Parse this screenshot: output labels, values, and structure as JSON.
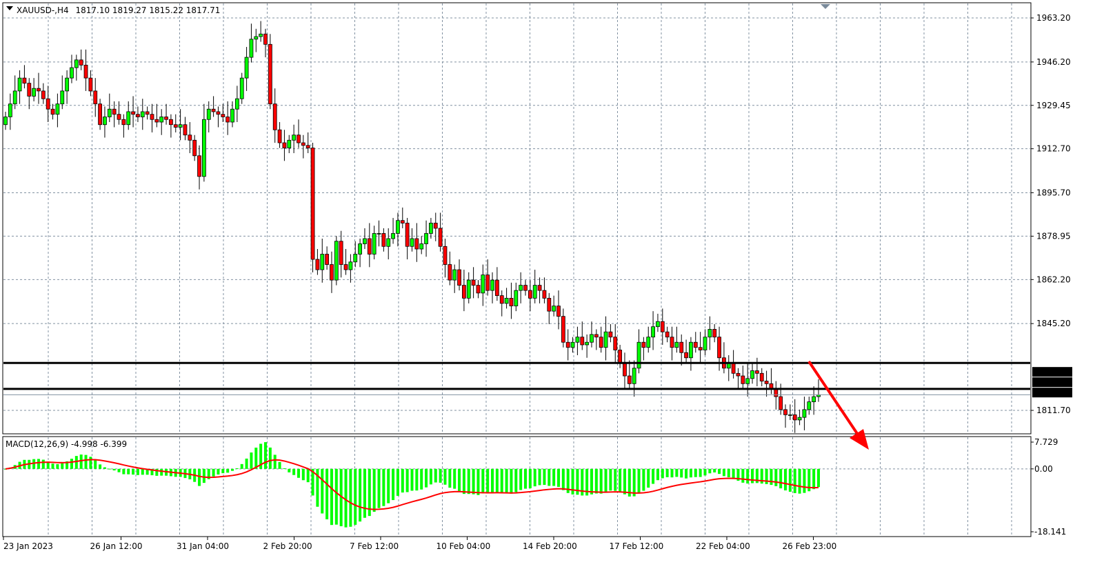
{
  "header": {
    "symbol": "XAUUSD-,H4",
    "ohlc": "1817.10 1819.27 1815.22 1817.71"
  },
  "price_axis": {
    "max": 1963.2,
    "min": 1811.7,
    "labels": [
      "1963.20",
      "1946.20",
      "1929.45",
      "1912.70",
      "1895.70",
      "1878.95",
      "1862.20",
      "1845.20",
      "1811.70"
    ]
  },
  "levels": [
    {
      "price": 1830.0,
      "label": "1830.00"
    },
    {
      "price": 1820.0,
      "label": "1820.00"
    }
  ],
  "current_price": {
    "price": 1817.71,
    "label": "1817.71"
  },
  "macd": {
    "label": "MACD(12,26,9) -4.998 -6.399",
    "max": 7.729,
    "min": -18.141,
    "labels": [
      "7.729",
      "0.00",
      "-18.141"
    ]
  },
  "time_axis": [
    "23 Jan 2023",
    "26 Jan 12:00",
    "31 Jan 04:00",
    "2 Feb 20:00",
    "7 Feb 12:00",
    "10 Feb 04:00",
    "14 Feb 20:00",
    "17 Feb 12:00",
    "22 Feb 04:00",
    "26 Feb 23:00"
  ],
  "colors": {
    "bull": "#00ff00",
    "bear": "#ff0000",
    "macd_hist": "#00ff00",
    "signal": "#ff0000",
    "arrow": "#ff0000"
  },
  "closes": [
    1925,
    1930,
    1935,
    1940,
    1938,
    1933,
    1936,
    1935,
    1932,
    1928,
    1926,
    1930,
    1935,
    1940,
    1944,
    1947,
    1945,
    1940,
    1935,
    1930,
    1922,
    1925,
    1928,
    1926,
    1924,
    1922,
    1927,
    1926,
    1925,
    1927,
    1926,
    1924,
    1923,
    1925,
    1924,
    1922,
    1921,
    1922,
    1918,
    1916,
    1910,
    1902,
    1924,
    1928,
    1927,
    1926,
    1925,
    1923,
    1928,
    1932,
    1940,
    1948,
    1955,
    1956,
    1957,
    1953,
    1930,
    1920,
    1915,
    1913,
    1916,
    1918,
    1915,
    1914,
    1913,
    1870,
    1866,
    1872,
    1868,
    1862,
    1877,
    1868,
    1866,
    1869,
    1872,
    1876,
    1878,
    1872,
    1880,
    1880,
    1875,
    1878,
    1880,
    1885,
    1884,
    1875,
    1878,
    1874,
    1876,
    1880,
    1884,
    1882,
    1875,
    1868,
    1862,
    1866,
    1860,
    1855,
    1862,
    1860,
    1857,
    1864,
    1858,
    1862,
    1856,
    1853,
    1855,
    1852,
    1858,
    1860,
    1858,
    1855,
    1860,
    1858,
    1855,
    1850,
    1852,
    1848,
    1838,
    1836,
    1838,
    1840,
    1837,
    1838,
    1841,
    1840,
    1836,
    1842,
    1840,
    1835,
    1830,
    1825,
    1822,
    1828,
    1838,
    1836,
    1840,
    1844,
    1846,
    1842,
    1840,
    1836,
    1838,
    1834,
    1832,
    1838,
    1836,
    1835,
    1840,
    1843,
    1840,
    1832,
    1828,
    1830,
    1826,
    1825,
    1822,
    1824,
    1827,
    1826,
    1823,
    1822,
    1820,
    1817,
    1812,
    1810,
    1810,
    1808,
    1809,
    1812,
    1815,
    1817,
    1817.71
  ]
}
